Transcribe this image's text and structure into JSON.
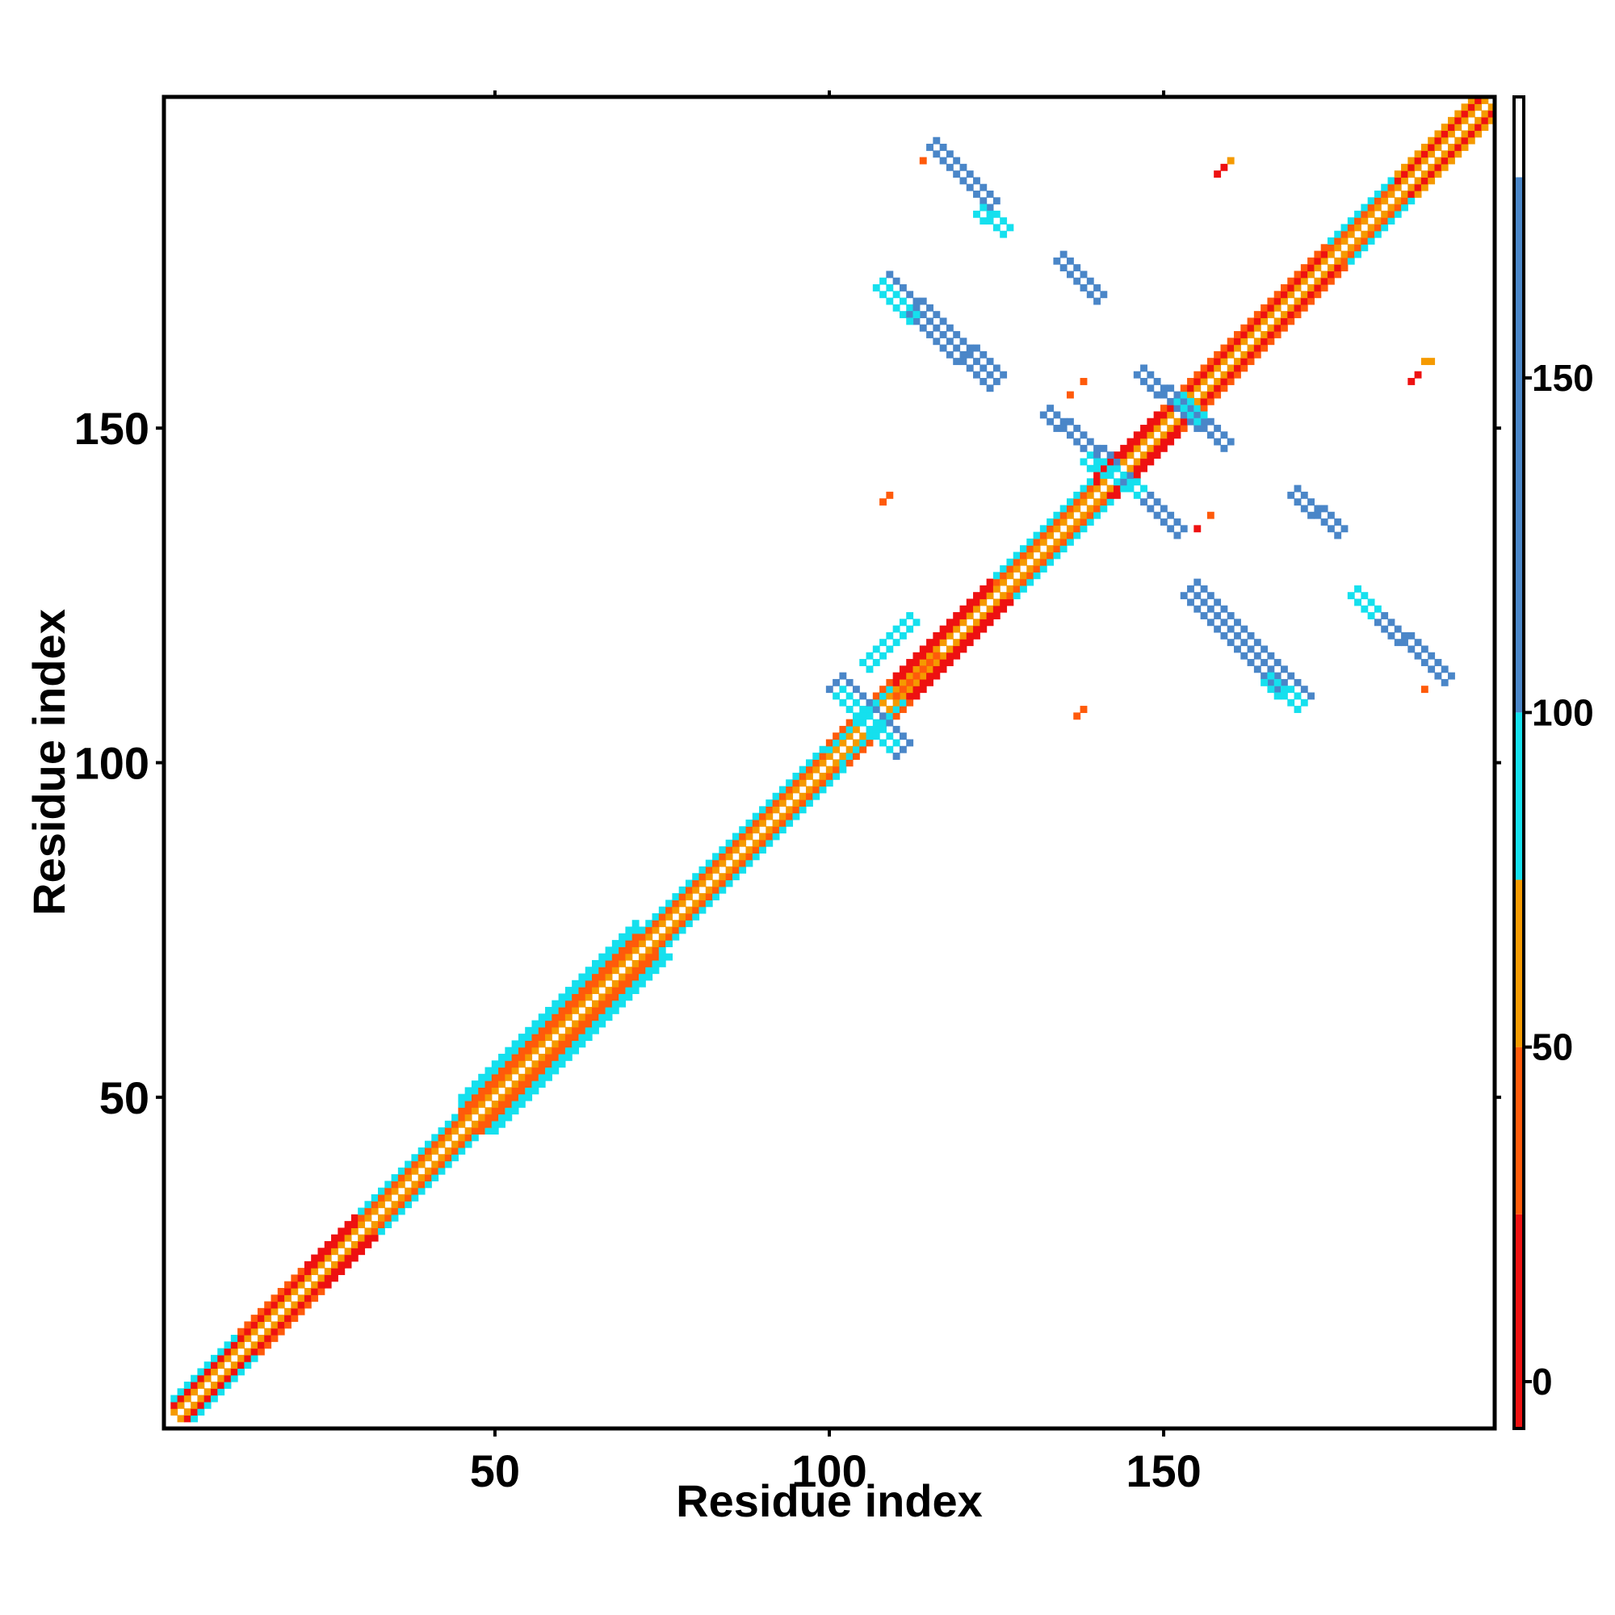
{
  "chart_data": {
    "type": "heatmap",
    "title": "",
    "xlabel": "Residue index",
    "ylabel": "Residue index",
    "xlim": [
      0.5,
      199.5
    ],
    "ylim": [
      0.5,
      199.5
    ],
    "x_ticks": [
      50,
      100,
      150
    ],
    "y_ticks": [
      50,
      100,
      150
    ],
    "colorbar": {
      "ticks": [
        0,
        50,
        100,
        150
      ],
      "range": [
        -7,
        192
      ],
      "bands": [
        {
          "from": -7,
          "to": 25,
          "color": "#ee1111"
        },
        {
          "from": 25,
          "to": 50,
          "color": "#ff5a0a"
        },
        {
          "from": 50,
          "to": 75,
          "color": "#f59a00"
        },
        {
          "from": 75,
          "to": 100,
          "color": "#15e0ee"
        },
        {
          "from": 100,
          "to": 180,
          "color": "#4a86c8"
        },
        {
          "from": 180,
          "to": 192,
          "color": "#ffffff"
        }
      ]
    },
    "band_colors": {
      "red": "#ee1111",
      "orange_red": "#ff5a0a",
      "orange": "#f59a00",
      "cyan": "#15e0ee",
      "blue": "#4a86c8"
    },
    "diagonal_bands": [
      {
        "from": 2,
        "to": 12,
        "offsets": {
          "1": "orange",
          "2": "red",
          "3": "cyan"
        }
      },
      {
        "from": 12,
        "to": 22,
        "offsets": {
          "1": "orange",
          "2": "red",
          "3": "orange_red"
        }
      },
      {
        "from": 22,
        "to": 30,
        "offsets": {
          "1": "orange",
          "2": "red",
          "3": "red"
        }
      },
      {
        "from": 30,
        "to": 45,
        "offsets": {
          "1": "orange",
          "2": "orange_red",
          "3": "cyan"
        }
      },
      {
        "from": 45,
        "to": 72,
        "offsets": {
          "1": "orange",
          "2": "orange_red",
          "3": "orange_red",
          "4": "cyan",
          "5": "cyan"
        }
      },
      {
        "from": 72,
        "to": 100,
        "offsets": {
          "1": "orange",
          "2": "orange_red",
          "3": "cyan"
        }
      },
      {
        "from": 100,
        "to": 110,
        "offsets": {
          "1": "orange",
          "2": "cyan",
          "3": "orange_red"
        }
      },
      {
        "from": 110,
        "to": 125,
        "offsets": {
          "1": "orange",
          "2": "red",
          "3": "red"
        }
      },
      {
        "from": 125,
        "to": 140,
        "offsets": {
          "1": "orange",
          "2": "orange_red",
          "3": "cyan"
        }
      },
      {
        "from": 140,
        "to": 150,
        "offsets": {
          "1": "orange",
          "2": "red",
          "3": "red"
        }
      },
      {
        "from": 150,
        "to": 175,
        "offsets": {
          "1": "orange",
          "2": "red",
          "3": "orange_red"
        }
      },
      {
        "from": 175,
        "to": 185,
        "offsets": {
          "1": "orange",
          "2": "orange_red",
          "3": "cyan"
        }
      },
      {
        "from": 185,
        "to": 199,
        "offsets": {
          "1": "orange",
          "2": "red",
          "3": "orange"
        }
      }
    ],
    "off_diagonal_contacts": [
      {
        "kind": "antiparallel",
        "start": [
          115,
          192
        ],
        "end": [
          124,
          183
        ],
        "width": 2,
        "color": "blue"
      },
      {
        "kind": "antiparallel",
        "start": [
          122,
          182
        ],
        "end": [
          126,
          179
        ],
        "width": 2,
        "color": "cyan"
      },
      {
        "kind": "antiparallel",
        "start": [
          107,
          171
        ],
        "end": [
          124,
          156
        ],
        "width": 3,
        "color": "blue"
      },
      {
        "kind": "antiparallel",
        "start": [
          107,
          171
        ],
        "end": [
          112,
          166
        ],
        "width": 2,
        "color": "cyan"
      },
      {
        "kind": "antiparallel",
        "start": [
          134,
          175
        ],
        "end": [
          140,
          169
        ],
        "width": 2,
        "color": "blue"
      },
      {
        "kind": "antiparallel",
        "start": [
          132,
          152
        ],
        "end": [
          142,
          144
        ],
        "width": 2,
        "color": "blue"
      },
      {
        "kind": "antiparallel",
        "start": [
          144,
          142
        ],
        "end": [
          152,
          134
        ],
        "width": 2,
        "color": "blue"
      },
      {
        "kind": "antiparallel",
        "start": [
          138,
          145
        ],
        "end": [
          146,
          140
        ],
        "width": 2,
        "color": "cyan"
      },
      {
        "kind": "antiparallel",
        "start": [
          146,
          158
        ],
        "end": [
          159,
          147
        ],
        "width": 2,
        "color": "blue"
      },
      {
        "kind": "antiparallel",
        "start": [
          152,
          154
        ],
        "end": [
          155,
          151
        ],
        "width": 2,
        "color": "cyan"
      },
      {
        "kind": "antiparallel",
        "start": [
          169,
          140
        ],
        "end": [
          176,
          134
        ],
        "width": 2,
        "color": "blue"
      },
      {
        "kind": "antiparallel",
        "start": [
          153,
          125
        ],
        "end": [
          170,
          108
        ],
        "width": 3,
        "color": "blue"
      },
      {
        "kind": "antiparallel",
        "start": [
          165,
          112
        ],
        "end": [
          170,
          108
        ],
        "width": 2,
        "color": "cyan"
      },
      {
        "kind": "antiparallel",
        "start": [
          180,
          123
        ],
        "end": [
          192,
          112
        ],
        "width": 2,
        "color": "blue"
      },
      {
        "kind": "antiparallel",
        "start": [
          178,
          125
        ],
        "end": [
          181,
          122
        ],
        "width": 2,
        "color": "cyan"
      },
      {
        "kind": "antiparallel",
        "start": [
          100,
          111
        ],
        "end": [
          110,
          101
        ],
        "width": 3,
        "color": "blue"
      },
      {
        "kind": "antiparallel",
        "start": [
          101,
          110
        ],
        "end": [
          109,
          102
        ],
        "width": 2,
        "color": "cyan"
      },
      {
        "kind": "parallel",
        "start": [
          105,
          115
        ],
        "end": [
          112,
          122
        ],
        "width": 2,
        "color": "cyan"
      },
      {
        "kind": "parallel",
        "start": [
          110,
          110
        ],
        "end": [
          116,
          116
        ],
        "width": 1,
        "color": "orange_red"
      }
    ],
    "isolated_points": [
      {
        "x": 114,
        "y": 190,
        "color": "orange_red"
      },
      {
        "x": 158,
        "y": 188,
        "color": "red"
      },
      {
        "x": 159,
        "y": 189,
        "color": "red"
      },
      {
        "x": 160,
        "y": 190,
        "color": "orange"
      },
      {
        "x": 136,
        "y": 155,
        "color": "orange_red"
      },
      {
        "x": 138,
        "y": 157,
        "color": "orange_red"
      },
      {
        "x": 187,
        "y": 157,
        "color": "red"
      },
      {
        "x": 188,
        "y": 158,
        "color": "red"
      },
      {
        "x": 189,
        "y": 160,
        "color": "orange"
      },
      {
        "x": 190,
        "y": 160,
        "color": "orange"
      },
      {
        "x": 108,
        "y": 139,
        "color": "orange_red"
      },
      {
        "x": 109,
        "y": 140,
        "color": "orange_red"
      },
      {
        "x": 155,
        "y": 135,
        "color": "red"
      },
      {
        "x": 157,
        "y": 137,
        "color": "orange_red"
      },
      {
        "x": 137,
        "y": 107,
        "color": "orange_red"
      },
      {
        "x": 138,
        "y": 108,
        "color": "orange_red"
      },
      {
        "x": 189,
        "y": 111,
        "color": "orange_red"
      }
    ]
  }
}
